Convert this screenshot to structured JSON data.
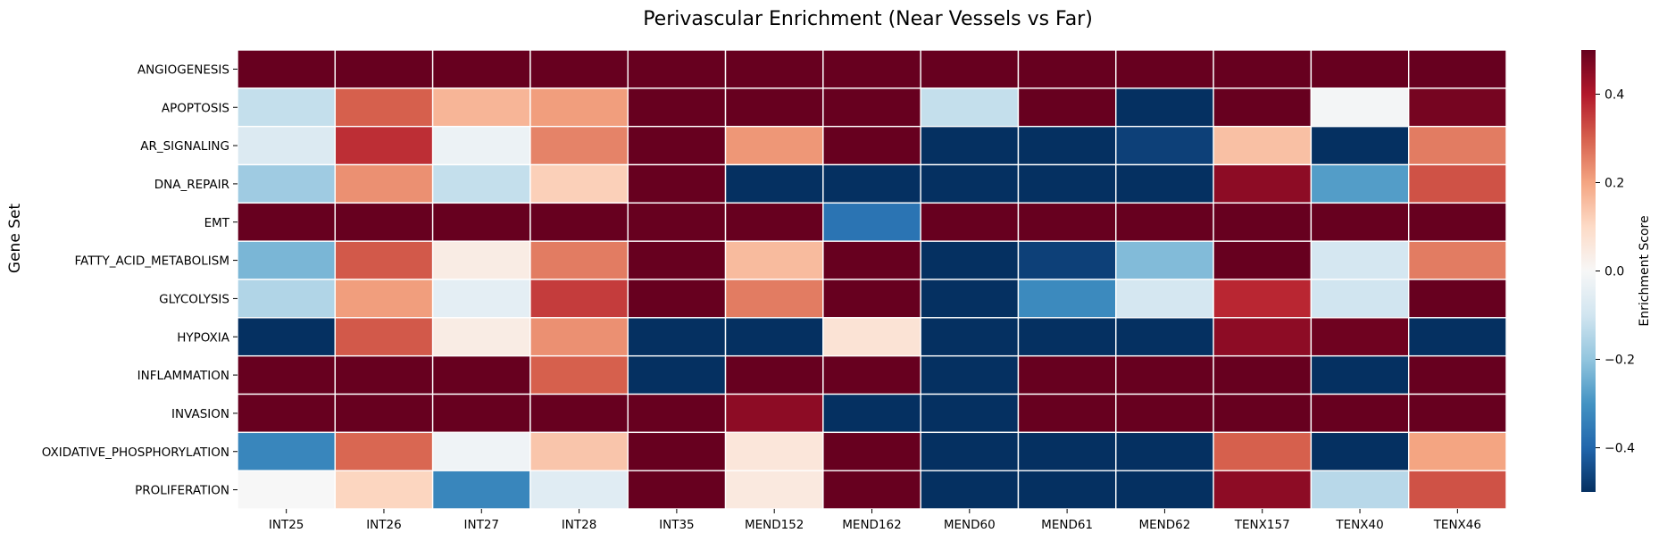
{
  "chart_data": {
    "type": "heatmap",
    "title": "Perivascular Enrichment (Near Vessels vs Far)",
    "xlabel": "",
    "ylabel": "Gene Set",
    "colorbar_label": "Enrichment Score",
    "colormap": "RdBu_r",
    "vmin": -0.5,
    "vmax": 0.5,
    "colorbar_ticks": [
      0.4,
      0.2,
      0.0,
      -0.2,
      -0.4
    ],
    "colorbar_tick_labels": [
      "0.4",
      "0.2",
      "0.0",
      "−0.2",
      "−0.4"
    ],
    "columns": [
      "INT25",
      "INT26",
      "INT27",
      "INT28",
      "INT35",
      "MEND152",
      "MEND162",
      "MEND60",
      "MEND61",
      "MEND62",
      "TENX157",
      "TENX40",
      "TENX46"
    ],
    "rows": [
      "ANGIOGENESIS",
      "APOPTOSIS",
      "AR_SIGNALING",
      "DNA_REPAIR",
      "EMT",
      "FATTY_ACID_METABOLISM",
      "GLYCOLYSIS",
      "HYPOXIA",
      "INFLAMMATION",
      "INVASION",
      "OXIDATIVE_PHOSPHORYLATION",
      "PROLIFERATION"
    ],
    "values": [
      [
        0.5,
        0.5,
        0.5,
        0.5,
        0.5,
        0.5,
        0.5,
        0.5,
        0.5,
        0.5,
        0.5,
        0.5,
        0.5
      ],
      [
        -0.12,
        0.3,
        0.17,
        0.21,
        0.5,
        0.5,
        0.5,
        -0.12,
        0.5,
        -0.5,
        0.5,
        -0.01,
        0.48
      ],
      [
        -0.07,
        0.37,
        -0.03,
        0.25,
        0.5,
        0.22,
        0.5,
        -0.5,
        -0.5,
        -0.47,
        0.15,
        -0.5,
        0.26
      ],
      [
        -0.18,
        0.23,
        -0.12,
        0.12,
        0.5,
        -0.5,
        -0.5,
        -0.5,
        -0.5,
        -0.5,
        0.45,
        -0.28,
        0.32
      ],
      [
        0.5,
        0.5,
        0.5,
        0.5,
        0.5,
        0.5,
        -0.37,
        0.5,
        0.5,
        0.5,
        0.5,
        0.5,
        0.5
      ],
      [
        -0.23,
        0.31,
        0.04,
        0.26,
        0.5,
        0.16,
        0.5,
        -0.5,
        -0.47,
        -0.22,
        0.5,
        -0.09,
        0.26
      ],
      [
        -0.15,
        0.21,
        -0.05,
        0.35,
        0.5,
        0.26,
        0.5,
        -0.5,
        -0.32,
        -0.09,
        0.38,
        -0.1,
        0.5
      ],
      [
        -0.5,
        0.31,
        0.04,
        0.23,
        -0.5,
        -0.5,
        0.07,
        -0.5,
        -0.5,
        -0.5,
        0.45,
        0.49,
        -0.5
      ],
      [
        0.5,
        0.5,
        0.5,
        0.3,
        -0.5,
        0.5,
        0.5,
        -0.5,
        0.5,
        0.5,
        0.5,
        -0.5,
        0.5
      ],
      [
        0.5,
        0.5,
        0.5,
        0.5,
        0.5,
        0.45,
        -0.5,
        -0.5,
        0.5,
        0.5,
        0.5,
        0.5,
        0.5
      ],
      [
        -0.33,
        0.29,
        -0.02,
        0.14,
        0.5,
        0.06,
        0.5,
        -0.5,
        -0.5,
        -0.5,
        0.3,
        -0.5,
        0.2
      ],
      [
        0.0,
        0.11,
        -0.33,
        -0.06,
        0.5,
        0.05,
        0.5,
        -0.5,
        -0.5,
        -0.5,
        0.45,
        -0.14,
        0.32
      ]
    ]
  }
}
